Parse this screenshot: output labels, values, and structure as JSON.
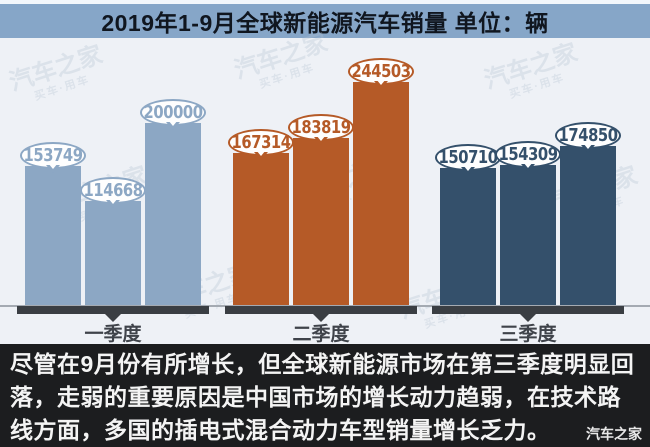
{
  "title_bar": {
    "title": "2019年1-9月全球新能源汽车销量  单位：辆"
  },
  "chart_data": {
    "type": "bar",
    "title": "2019年1-9月全球新能源汽车销量",
    "unit": "单位：辆",
    "categories": [
      "一季度",
      "二季度",
      "三季度"
    ],
    "groups": [
      {
        "label": "一季度",
        "color": "#8ca7c4",
        "values": [
          153749,
          114668,
          200000
        ]
      },
      {
        "label": "二季度",
        "color": "#b55a27",
        "values": [
          167314,
          183819,
          244503
        ]
      },
      {
        "label": "三季度",
        "color": "#34506b",
        "values": [
          150710,
          154309,
          174850
        ]
      }
    ],
    "ylim": [
      0,
      265000
    ],
    "grid": false,
    "legend": "none",
    "value_labels": "bubble-above-bar"
  },
  "footer": {
    "summary": "尽管在9月份有所增长，但全球新能源市场在第三季度明显回落，走弱的重要原因是中国市场的增长动力趋弱，在技术路线方面，多国的插电式混合动力车型销量增长乏力。",
    "brand": "汽车之家"
  },
  "watermark": {
    "line1": "汽车之家",
    "line2": "买车·用车"
  },
  "colors": {
    "title_band": "#86a6c8",
    "chart_bg": "#eef1f6",
    "axis_thin": "#a4aab2",
    "axis_thick": "#3a3e43",
    "footer_bg": "#1c1d1f",
    "q1": "#8ca7c4",
    "q2": "#b55a27",
    "q3": "#34506b"
  }
}
